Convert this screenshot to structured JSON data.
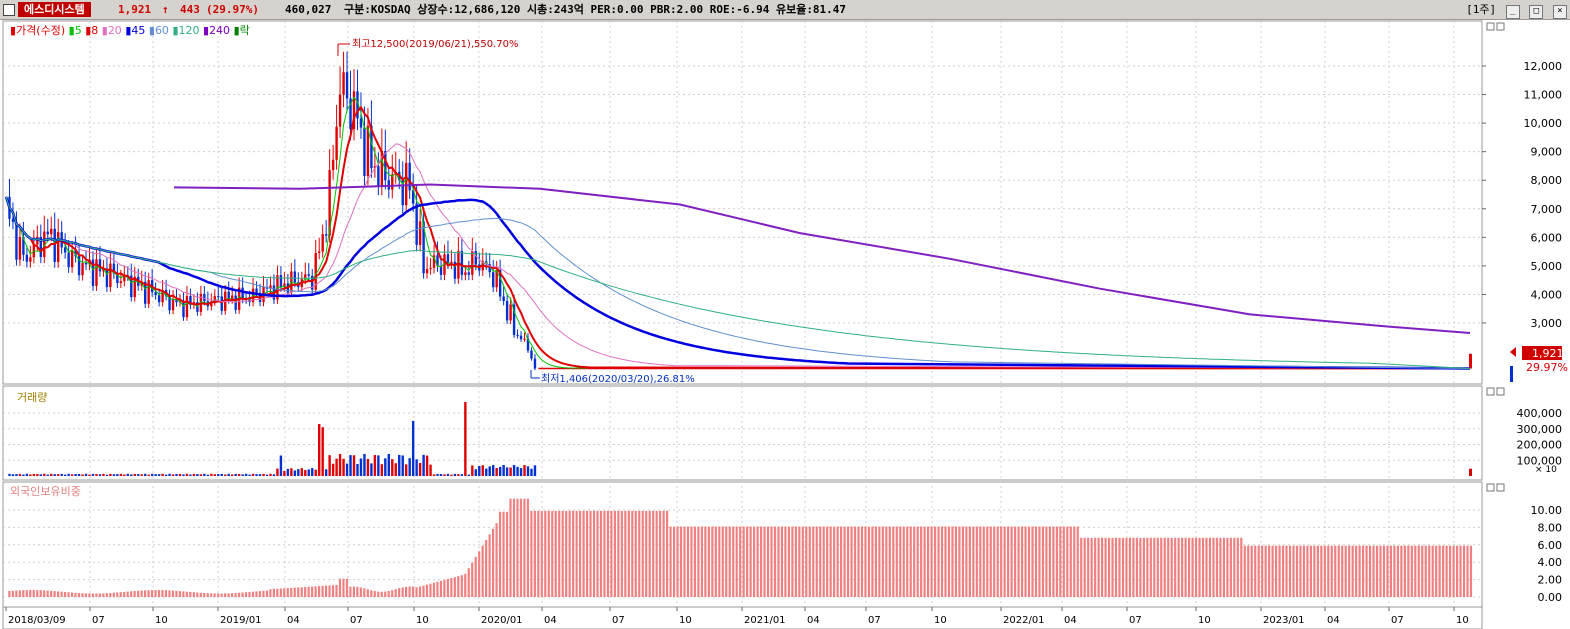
{
  "header": {
    "stock_name": "에스디시스템",
    "price": "1,921",
    "change_arrow": "↑",
    "change": "443",
    "change_pct": "(29.97%)",
    "volume": "460,027",
    "info": "구분:KOSDAQ 상장수:12,686,120 시총:243억 PER:0.00 PBR:2.00 ROE:-6.94 유보율:81.47",
    "period": "[1주]",
    "btn_min": "_",
    "btn_max": "□",
    "btn_close": "×"
  },
  "price_panel": {
    "legend": [
      {
        "label": "가격(수정)",
        "color": "#e00000"
      },
      {
        "label": "5",
        "color": "#00c000"
      },
      {
        "label": "8",
        "color": "#e00000"
      },
      {
        "label": "20",
        "color": "#e070c0"
      },
      {
        "label": "45",
        "color": "#0000e0"
      },
      {
        "label": "60",
        "color": "#6090d0"
      },
      {
        "label": "120",
        "color": "#30b080"
      },
      {
        "label": "240",
        "color": "#8000c0"
      },
      {
        "label": "락",
        "color": "#008000"
      }
    ],
    "high_annotation": "최고12,500(2019/06/21),550.70%",
    "low_annotation": "최저1,406(2020/03/20),26.81%",
    "current_price_tag": "1,921",
    "current_pct_tag": "29.97%",
    "y_ticks": [
      "12,000",
      "11,000",
      "10,000",
      "9,000",
      "8,000",
      "7,000",
      "6,000",
      "5,000",
      "4,000",
      "3,000"
    ]
  },
  "volume_panel": {
    "title": "거래량",
    "y_ticks": [
      "400,000",
      "300,000",
      "200,000",
      "100,000"
    ],
    "unit": "× 10"
  },
  "foreign_panel": {
    "title": "외국인보유비중",
    "y_ticks": [
      "10.00",
      "8.00",
      "6.00",
      "4.00",
      "2.00",
      "0.00"
    ]
  },
  "x_axis": [
    "2018/03/09",
    "07",
    "10",
    "2019/01",
    "04",
    "07",
    "10",
    "2020/01",
    "04",
    "07",
    "10",
    "2021/01",
    "04",
    "07",
    "10",
    "2022/01",
    "04",
    "07",
    "10",
    "2023/01",
    "04",
    "07",
    "10"
  ],
  "colors": {
    "up": "#e00000",
    "down": "#0030d0",
    "grid": "#d0d0d0",
    "foreign_bar": "#f08080"
  },
  "chart_data": {
    "type": "candlestick",
    "frequency": "weekly",
    "price_high": {
      "value": 12500,
      "date": "2019/06/21",
      "pct": 550.7
    },
    "price_low": {
      "value": 1406,
      "date": "2020/03/20",
      "pct": 26.81
    },
    "last_price": 1921,
    "last_change": 443,
    "last_change_pct": 29.97,
    "price_ylim": [
      1406,
      12500
    ],
    "moving_averages": [
      "5",
      "8",
      "20",
      "45",
      "60",
      "120",
      "240"
    ],
    "volume_ylim": [
      0,
      480000
    ],
    "foreign_ratio_ylim": [
      0,
      12
    ],
    "foreign_ratio_levels": [
      {
        "from": "2018/03",
        "value": 0.3
      },
      {
        "from": "2020/01",
        "value": 11.0
      },
      {
        "from": "2020/04",
        "value": 9.8
      },
      {
        "from": "2020/09",
        "value": 8.1
      },
      {
        "from": "2022/04",
        "value": 6.8
      },
      {
        "from": "2022/12",
        "value": 5.9
      }
    ]
  }
}
